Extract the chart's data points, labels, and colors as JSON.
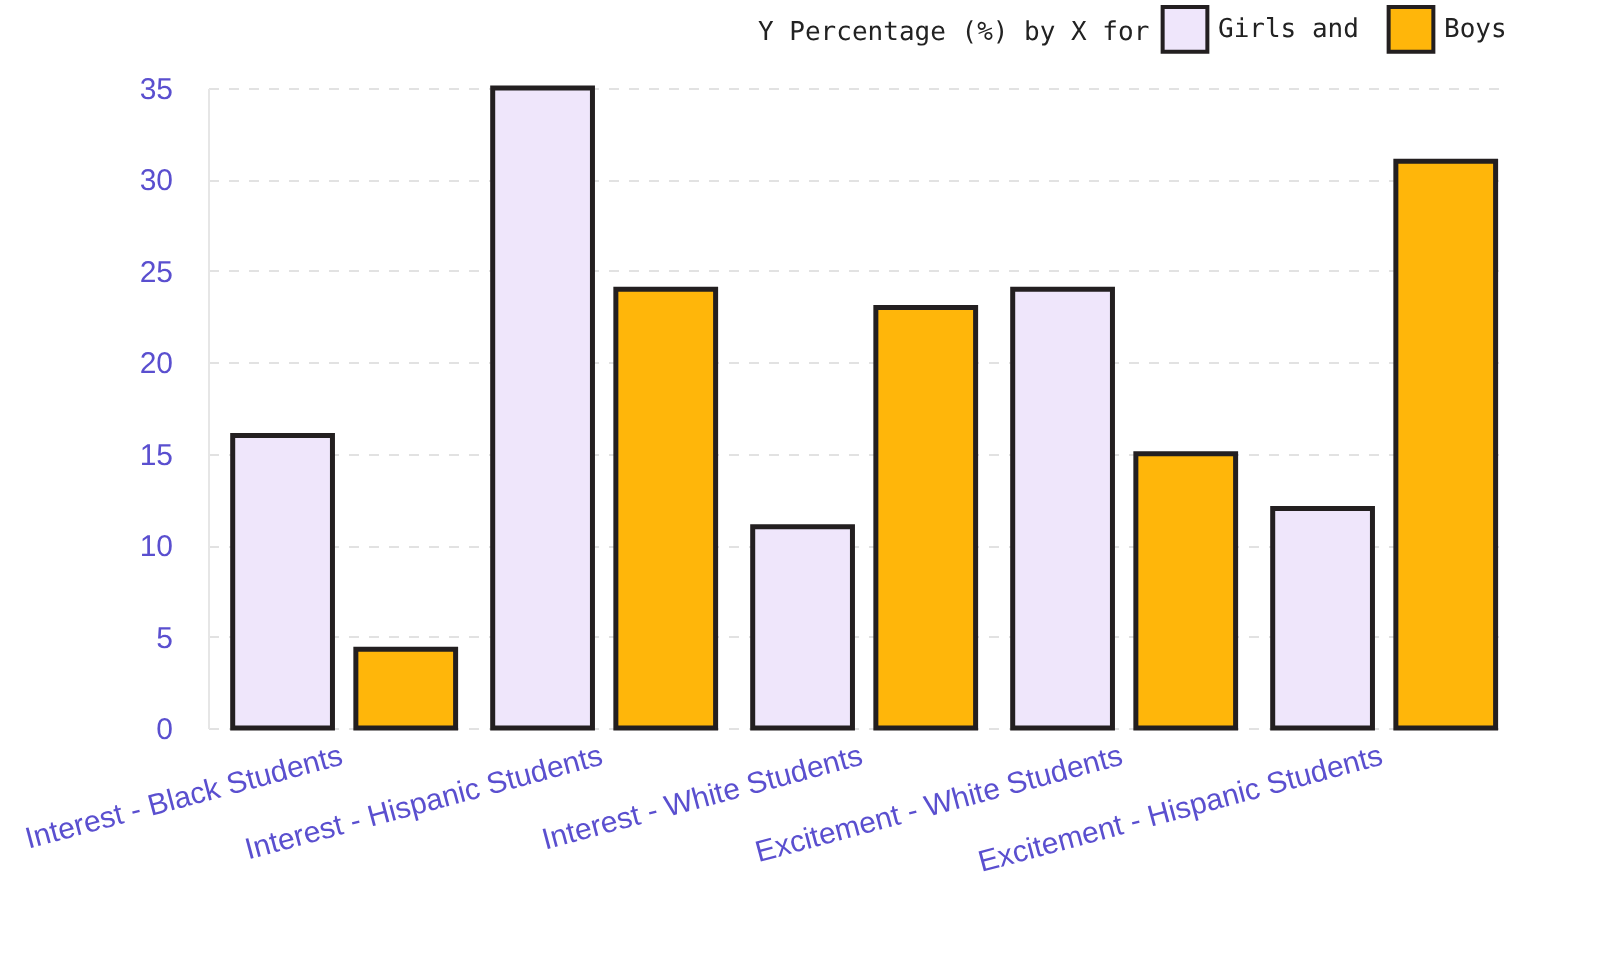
{
  "chart_data": {
    "type": "bar",
    "legend_title": "Y Percentage (%) by X for",
    "categories": [
      "Interest - Black Students",
      "Interest - Hispanic Students",
      "Interest - White Students",
      "Excitement - White Students",
      "Excitement - Hispanic Students"
    ],
    "series": [
      {
        "name": "Girls and",
        "color": "#efe6fb",
        "values": [
          16,
          35,
          11,
          24,
          12
        ]
      },
      {
        "name": "Boys",
        "color": "#ffb60a",
        "values": [
          4.3,
          24,
          23,
          15,
          31
        ]
      }
    ],
    "ylim": [
      0,
      35
    ],
    "yticks": [
      0,
      5,
      10,
      15,
      20,
      25,
      30,
      35
    ],
    "grid": "y",
    "legend": "top right"
  }
}
